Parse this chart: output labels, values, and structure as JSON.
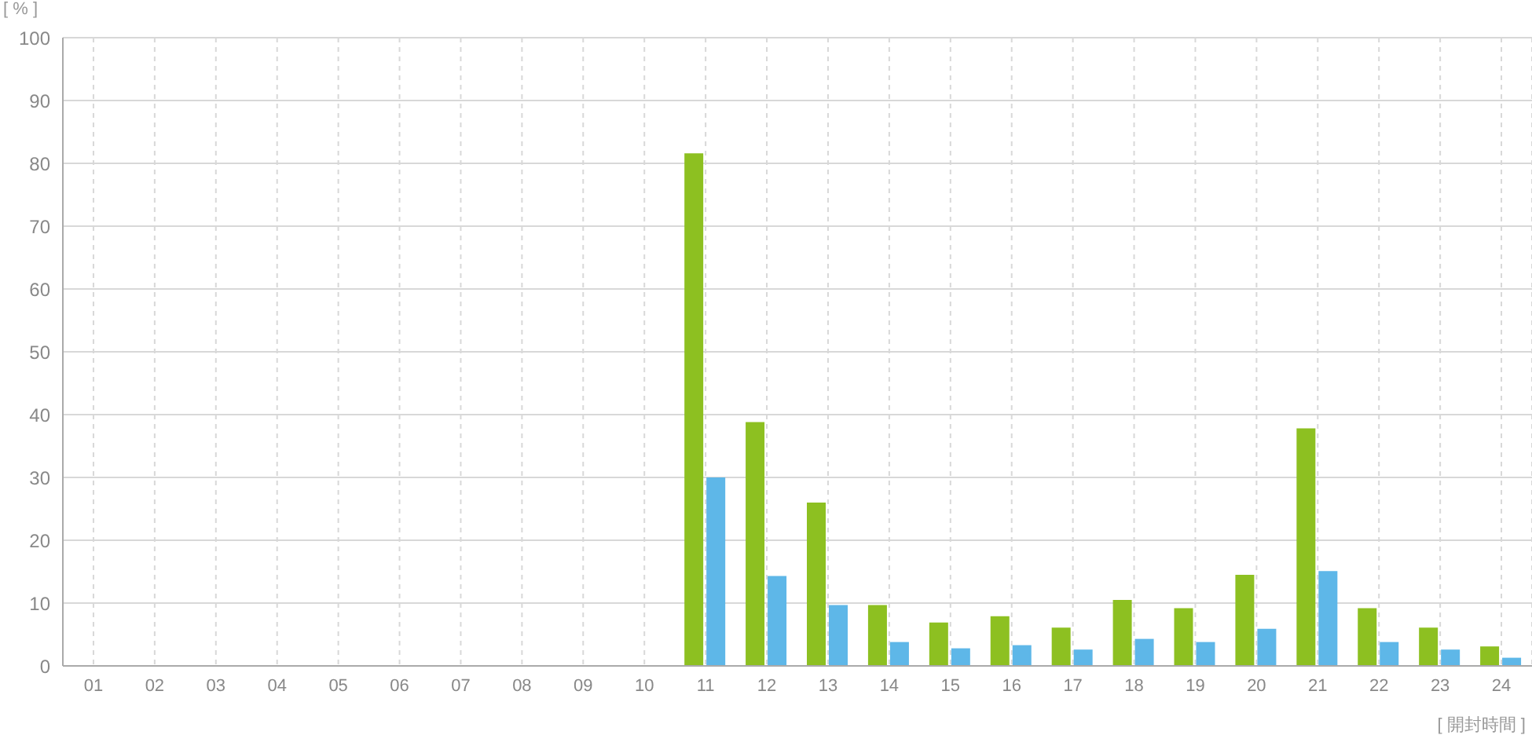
{
  "chart_data": {
    "type": "bar",
    "ylabel": "[ % ]",
    "xlabel": "[ 開封時間 ]",
    "categories": [
      "01",
      "02",
      "03",
      "04",
      "05",
      "06",
      "07",
      "08",
      "09",
      "10",
      "11",
      "12",
      "13",
      "14",
      "15",
      "16",
      "17",
      "18",
      "19",
      "20",
      "21",
      "22",
      "23",
      "24"
    ],
    "series": [
      {
        "color": "#8dc021",
        "values": [
          0,
          0,
          0,
          0,
          0,
          0,
          0,
          0,
          0,
          0,
          81.6,
          38.8,
          26,
          9.7,
          6.9,
          7.9,
          6.1,
          10.5,
          9.2,
          14.5,
          37.8,
          9.2,
          6.1,
          3.1
        ]
      },
      {
        "color": "#5eb7e8",
        "values": [
          0,
          0,
          0,
          0,
          0,
          0,
          0,
          0,
          0,
          0,
          30,
          14.3,
          9.7,
          3.8,
          2.8,
          3.3,
          2.6,
          4.3,
          3.8,
          5.9,
          15.1,
          3.8,
          2.6,
          1.3
        ]
      }
    ],
    "ylim": [
      0,
      100
    ],
    "yticks": [
      0,
      10,
      20,
      30,
      40,
      50,
      60,
      70,
      80,
      90,
      100
    ],
    "grid": true
  }
}
